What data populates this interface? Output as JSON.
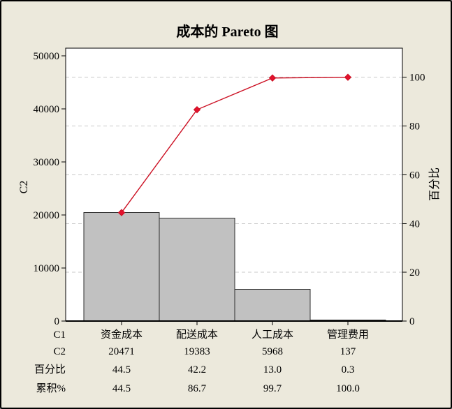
{
  "chart_data": {
    "type": "pareto",
    "title": "成本的 Pareto 图",
    "categories": [
      "资金成本",
      "配送成本",
      "人工成本",
      "管理费用"
    ],
    "values": [
      20471,
      19383,
      5968,
      137
    ],
    "percent": [
      "44.5",
      "42.2",
      "13.0",
      "0.3"
    ],
    "cumulative_percent": [
      "44.5",
      "86.7",
      "99.7",
      "100.0"
    ],
    "left_axis": {
      "label": "C2",
      "min": 0,
      "max": 50000,
      "ticks": [
        0,
        10000,
        20000,
        30000,
        40000,
        50000
      ]
    },
    "right_axis": {
      "label": "百分比",
      "min": 0,
      "max": 100,
      "ticks": [
        0,
        20,
        40,
        60,
        80,
        100
      ]
    },
    "table": {
      "row_labels": [
        "C1",
        "C2",
        "百分比",
        "累积%"
      ]
    },
    "grid": "dashed horizontal at right-axis ticks",
    "legend": "none",
    "colors": {
      "background": "#ece9dc",
      "plot_background": "#ffffff",
      "bar_fill": "#c1c1c1",
      "bar_border": "#2e2e2e",
      "line": "#cc1023",
      "marker": "#e3112d",
      "gridline": "#c8c8c8",
      "frame": "#000000",
      "text": "#000000"
    }
  }
}
